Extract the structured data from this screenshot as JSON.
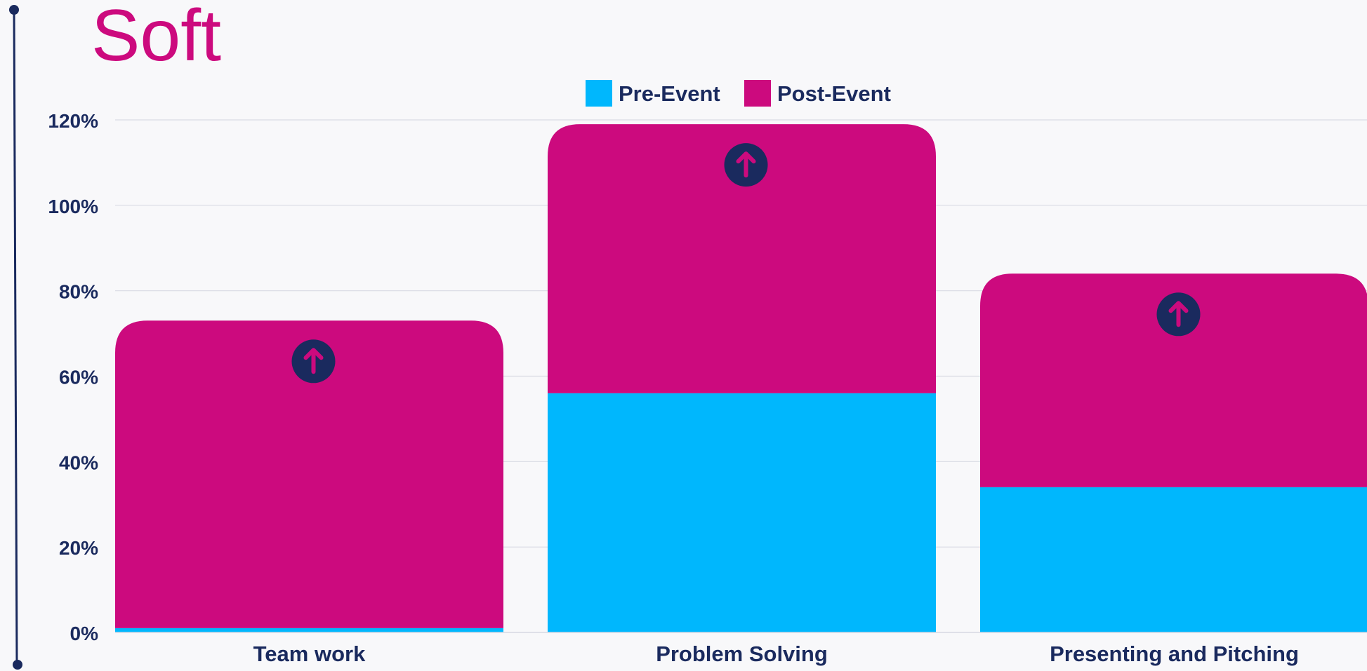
{
  "page": {
    "title": "Soft"
  },
  "colors": {
    "pre_event": "#00b7fd",
    "post_event": "#cc0a7e",
    "navy": "#1a2a5e",
    "grid": "#d9dbe3",
    "background": "#f8f8fa"
  },
  "icons": {
    "timeline_rail": "vertical-line-with-dot-ends",
    "bar_marker": "arrow-up-circle-icon"
  },
  "chart_data": {
    "type": "bar",
    "stacked": true,
    "categories": [
      "Team work",
      "Problem Solving",
      "Presenting and Pitching"
    ],
    "series": [
      {
        "name": "Pre-Event",
        "values": [
          1,
          56,
          34
        ]
      },
      {
        "name": "Post-Event",
        "values": [
          72,
          63,
          50
        ]
      }
    ],
    "ylim": [
      0,
      120
    ],
    "yticks": [
      "0%",
      "20%",
      "40%",
      "60%",
      "80%",
      "100%",
      "120%"
    ],
    "legend": {
      "position": "top-center"
    },
    "grid": true
  }
}
